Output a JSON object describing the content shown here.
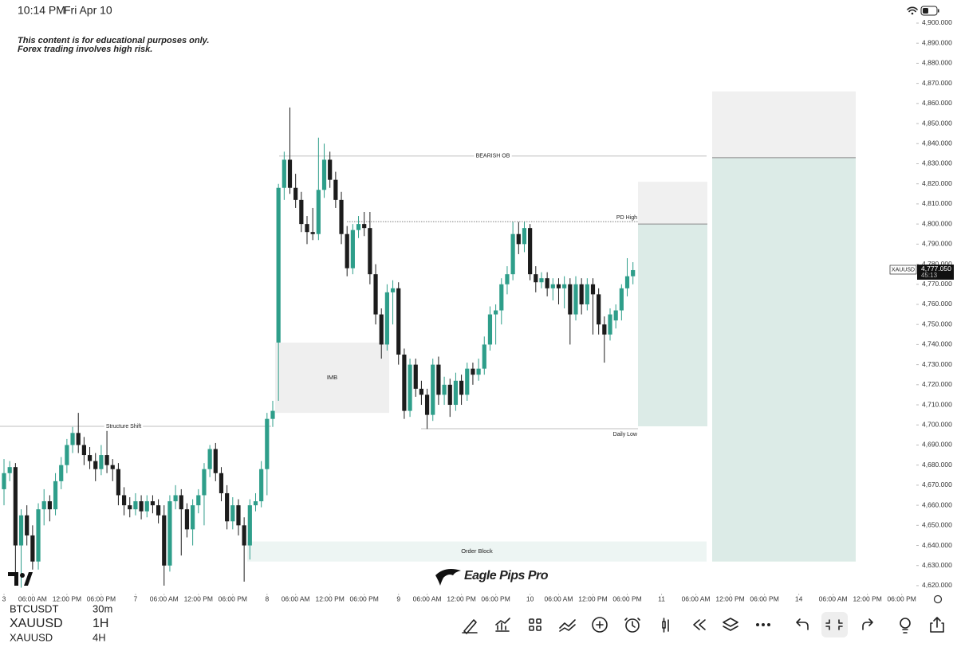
{
  "status_bar": {
    "time": "10:14 PM",
    "date": "Fri Apr 10"
  },
  "disclaimer": [
    "This content is for educational purposes only.",
    "Forex trading involves high risk."
  ],
  "logo": "Eagle Pips Pro",
  "chart_data": {
    "type": "candlestick",
    "symbol": "XAUUSD",
    "up_color": "#2e9e8a",
    "down_color": "#1c1c1c",
    "ylim": [
      4617.2,
      4911.5
    ],
    "xlim": [
      -0.7,
      159
    ],
    "yticks": [
      {
        "value": 4900,
        "label": "4,900.000"
      },
      {
        "value": 4890,
        "label": "4,890.000"
      },
      {
        "value": 4880,
        "label": "4,880.000"
      },
      {
        "value": 4870,
        "label": "4,870.000"
      },
      {
        "value": 4860,
        "label": "4,860.000"
      },
      {
        "value": 4850,
        "label": "4,850.000"
      },
      {
        "value": 4840,
        "label": "4,840.000"
      },
      {
        "value": 4830,
        "label": "4,830.000"
      },
      {
        "value": 4820,
        "label": "4,820.000"
      },
      {
        "value": 4810,
        "label": "4,810.000"
      },
      {
        "value": 4800,
        "label": "4,800.000"
      },
      {
        "value": 4790,
        "label": "4,790.000"
      },
      {
        "value": 4780,
        "label": "4,780.000"
      },
      {
        "value": 4770,
        "label": "4,770.000"
      },
      {
        "value": 4760,
        "label": "4,760.000"
      },
      {
        "value": 4750,
        "label": "4,750.000"
      },
      {
        "value": 4740,
        "label": "4,740.000"
      },
      {
        "value": 4730,
        "label": "4,730.000"
      },
      {
        "value": 4720,
        "label": "4,720.000"
      },
      {
        "value": 4710,
        "label": "4,710.000"
      },
      {
        "value": 4700,
        "label": "4,700.000"
      },
      {
        "value": 4690,
        "label": "4,690.000"
      },
      {
        "value": 4680,
        "label": "4,680.000"
      },
      {
        "value": 4670,
        "label": "4,670.000"
      },
      {
        "value": 4660,
        "label": "4,660.000"
      },
      {
        "value": 4650,
        "label": "4,650.000"
      },
      {
        "value": 4640,
        "label": "4,640.000"
      },
      {
        "value": 4630,
        "label": "4,630.000"
      },
      {
        "value": 4620,
        "label": "4,620.000"
      }
    ],
    "xticks": [
      {
        "value": 0,
        "label": "3"
      },
      {
        "value": 5,
        "label": "06:00 AM"
      },
      {
        "value": 11,
        "label": "12:00 PM"
      },
      {
        "value": 17,
        "label": "06:00 PM"
      },
      {
        "value": 23,
        "label": "7"
      },
      {
        "value": 28,
        "label": "06:00 AM"
      },
      {
        "value": 34,
        "label": "12:00 PM"
      },
      {
        "value": 40,
        "label": "06:00 PM"
      },
      {
        "value": 46,
        "label": "8"
      },
      {
        "value": 51,
        "label": "06:00 AM"
      },
      {
        "value": 57,
        "label": "12:00 PM"
      },
      {
        "value": 63,
        "label": "06:00 PM"
      },
      {
        "value": 69,
        "label": "9"
      },
      {
        "value": 74,
        "label": "06:00 AM"
      },
      {
        "value": 80,
        "label": "12:00 PM"
      },
      {
        "value": 86,
        "label": "06:00 PM"
      },
      {
        "value": 92,
        "label": "10"
      },
      {
        "value": 97,
        "label": "06:00 AM"
      },
      {
        "value": 103,
        "label": "12:00 PM"
      },
      {
        "value": 109,
        "label": "06:00 PM"
      },
      {
        "value": 115,
        "label": "11"
      },
      {
        "value": 121,
        "label": "06:00 AM"
      },
      {
        "value": 127,
        "label": "12:00 PM"
      },
      {
        "value": 133,
        "label": "06:00 PM"
      },
      {
        "value": 139,
        "label": "14"
      },
      {
        "value": 145,
        "label": "06:00 AM"
      },
      {
        "value": 151,
        "label": "12:00 PM"
      },
      {
        "value": 157,
        "label": "06:00 PM"
      }
    ],
    "candles": [
      [
        4668,
        4683,
        4660,
        4676
      ],
      [
        4676,
        4682,
        4672,
        4679
      ],
      [
        4679,
        4681,
        4625,
        4640
      ],
      [
        4640,
        4658,
        4619,
        4655
      ],
      [
        4655,
        4660,
        4640,
        4645
      ],
      [
        4645,
        4650,
        4628,
        4632
      ],
      [
        4632,
        4661,
        4628,
        4658
      ],
      [
        4658,
        4668,
        4650,
        4662
      ],
      [
        4662,
        4665,
        4652,
        4658
      ],
      [
        4658,
        4676,
        4655,
        4672
      ],
      [
        4672,
        4684,
        4668,
        4680
      ],
      [
        4680,
        4693,
        4676,
        4690
      ],
      [
        4690,
        4699,
        4686,
        4696
      ],
      [
        4696,
        4706,
        4686,
        4690
      ],
      [
        4690,
        4694,
        4680,
        4685
      ],
      [
        4685,
        4689,
        4678,
        4682
      ],
      [
        4682,
        4686,
        4672,
        4678
      ],
      [
        4678,
        4690,
        4675,
        4685
      ],
      [
        4685,
        4697,
        4676,
        4680
      ],
      [
        4680,
        4683,
        4672,
        4678
      ],
      [
        4678,
        4681,
        4660,
        4665
      ],
      [
        4665,
        4669,
        4655,
        4660
      ],
      [
        4660,
        4664,
        4654,
        4658
      ],
      [
        4658,
        4666,
        4655,
        4662
      ],
      [
        4662,
        4665,
        4653,
        4657
      ],
      [
        4657,
        4665,
        4654,
        4662
      ],
      [
        4662,
        4665,
        4656,
        4660
      ],
      [
        4660,
        4663,
        4651,
        4655
      ],
      [
        4655,
        4660,
        4620,
        4630
      ],
      [
        4630,
        4665,
        4627,
        4662
      ],
      [
        4662,
        4670,
        4658,
        4665
      ],
      [
        4665,
        4668,
        4635,
        4658
      ],
      [
        4658,
        4661,
        4644,
        4648
      ],
      [
        4648,
        4663,
        4640,
        4660
      ],
      [
        4660,
        4668,
        4656,
        4665
      ],
      [
        4665,
        4681,
        4650,
        4678
      ],
      [
        4678,
        4690,
        4674,
        4688
      ],
      [
        4688,
        4691,
        4672,
        4676
      ],
      [
        4676,
        4679,
        4662,
        4666
      ],
      [
        4666,
        4670,
        4648,
        4652
      ],
      [
        4652,
        4664,
        4648,
        4660
      ],
      [
        4660,
        4663,
        4645,
        4650
      ],
      [
        4650,
        4654,
        4622,
        4640
      ],
      [
        4640,
        4663,
        4633,
        4660
      ],
      [
        4660,
        4666,
        4657,
        4662
      ],
      [
        4662,
        4682,
        4659,
        4678
      ],
      [
        4678,
        4706,
        4665,
        4703
      ],
      [
        4703,
        4712,
        4699,
        4707
      ],
      [
        4741,
        4820,
        4712,
        4818
      ],
      [
        4818,
        4836,
        4812,
        4832
      ],
      [
        4832,
        4858,
        4815,
        4818
      ],
      [
        4818,
        4825,
        4808,
        4812
      ],
      [
        4812,
        4816,
        4796,
        4800
      ],
      [
        4800,
        4804,
        4790,
        4796
      ],
      [
        4796,
        4808,
        4792,
        4795
      ],
      [
        4795,
        4843,
        4792,
        4817
      ],
      [
        4817,
        4840,
        4813,
        4832
      ],
      [
        4832,
        4836,
        4818,
        4822
      ],
      [
        4822,
        4826,
        4808,
        4812
      ],
      [
        4812,
        4816,
        4790,
        4795
      ],
      [
        4795,
        4799,
        4774,
        4778
      ],
      [
        4778,
        4800,
        4775,
        4797
      ],
      [
        4797,
        4804,
        4793,
        4800
      ],
      [
        4800,
        4806,
        4794,
        4798
      ],
      [
        4798,
        4806,
        4770,
        4775
      ],
      [
        4775,
        4780,
        4750,
        4755
      ],
      [
        4755,
        4758,
        4733,
        4740
      ],
      [
        4740,
        4770,
        4737,
        4766
      ],
      [
        4766,
        4772,
        4750,
        4768
      ],
      [
        4768,
        4771,
        4730,
        4735
      ],
      [
        4735,
        4738,
        4703,
        4707
      ],
      [
        4707,
        4733,
        4704,
        4730
      ],
      [
        4730,
        4733,
        4714,
        4718
      ],
      [
        4718,
        4722,
        4710,
        4715
      ],
      [
        4715,
        4718,
        4698,
        4705
      ],
      [
        4705,
        4733,
        4702,
        4730
      ],
      [
        4730,
        4734,
        4710,
        4715
      ],
      [
        4715,
        4724,
        4710,
        4720
      ],
      [
        4720,
        4723,
        4704,
        4710
      ],
      [
        4710,
        4726,
        4707,
        4722
      ],
      [
        4722,
        4725,
        4710,
        4715
      ],
      [
        4715,
        4731,
        4712,
        4728
      ],
      [
        4728,
        4731,
        4720,
        4725
      ],
      [
        4725,
        4733,
        4722,
        4728
      ],
      [
        4728,
        4744,
        4725,
        4740
      ],
      [
        4740,
        4759,
        4737,
        4755
      ],
      [
        4755,
        4760,
        4740,
        4757
      ],
      [
        4757,
        4773,
        4750,
        4770
      ],
      [
        4770,
        4779,
        4765,
        4775
      ],
      [
        4775,
        4801,
        4772,
        4795
      ],
      [
        4795,
        4801,
        4785,
        4790
      ],
      [
        4790,
        4801,
        4786,
        4798
      ],
      [
        4798,
        4800,
        4772,
        4775
      ],
      [
        4775,
        4779,
        4766,
        4771
      ],
      [
        4771,
        4776,
        4768,
        4773
      ],
      [
        4773,
        4776,
        4764,
        4768
      ],
      [
        4768,
        4773,
        4762,
        4770
      ],
      [
        4770,
        4773,
        4760,
        4768
      ],
      [
        4768,
        4774,
        4758,
        4770
      ],
      [
        4770,
        4773,
        4740,
        4755
      ],
      [
        4755,
        4774,
        4752,
        4770
      ],
      [
        4770,
        4773,
        4755,
        4760
      ],
      [
        4760,
        4773,
        4757,
        4770
      ],
      [
        4770,
        4773,
        4745,
        4765
      ],
      [
        4765,
        4768,
        4745,
        4750
      ],
      [
        4750,
        4754,
        4731,
        4745
      ],
      [
        4745,
        4758,
        4742,
        4755
      ],
      [
        4752,
        4760,
        4748,
        4757
      ],
      [
        4757,
        4770,
        4752,
        4768
      ],
      [
        4768,
        4783,
        4764,
        4774
      ],
      [
        4774,
        4781,
        4770,
        4777.05
      ]
    ],
    "levels": [
      {
        "label": "BEARISH OB",
        "value": 4833.8
      },
      {
        "label": "PD High",
        "value": 4801.2
      },
      {
        "label": "Structure Shift",
        "value": 4699.3
      },
      {
        "label": "Daily Low",
        "value": 4698.1
      }
    ],
    "zones": [
      {
        "label": "IMB",
        "range": [
          4706,
          4741
        ]
      },
      {
        "label": "Order Block",
        "range": [
          4632,
          4642
        ]
      }
    ],
    "positions": [
      {
        "stop": [
          4800,
          4821
        ],
        "target": [
          4699.3,
          4800
        ]
      },
      {
        "stop": [
          4833,
          4866
        ],
        "target": [
          4632,
          4833
        ]
      }
    ],
    "last_price": {
      "value": 4777.05,
      "label": "4,777.050",
      "countdown": "45:13"
    }
  },
  "bottom_bar": {
    "prev": {
      "symbol": "BTCUSDT",
      "interval": "30m"
    },
    "current": {
      "symbol": "XAUUSD",
      "interval": "1H"
    },
    "next": {
      "symbol": "XAUUSD",
      "interval": "4H"
    }
  }
}
